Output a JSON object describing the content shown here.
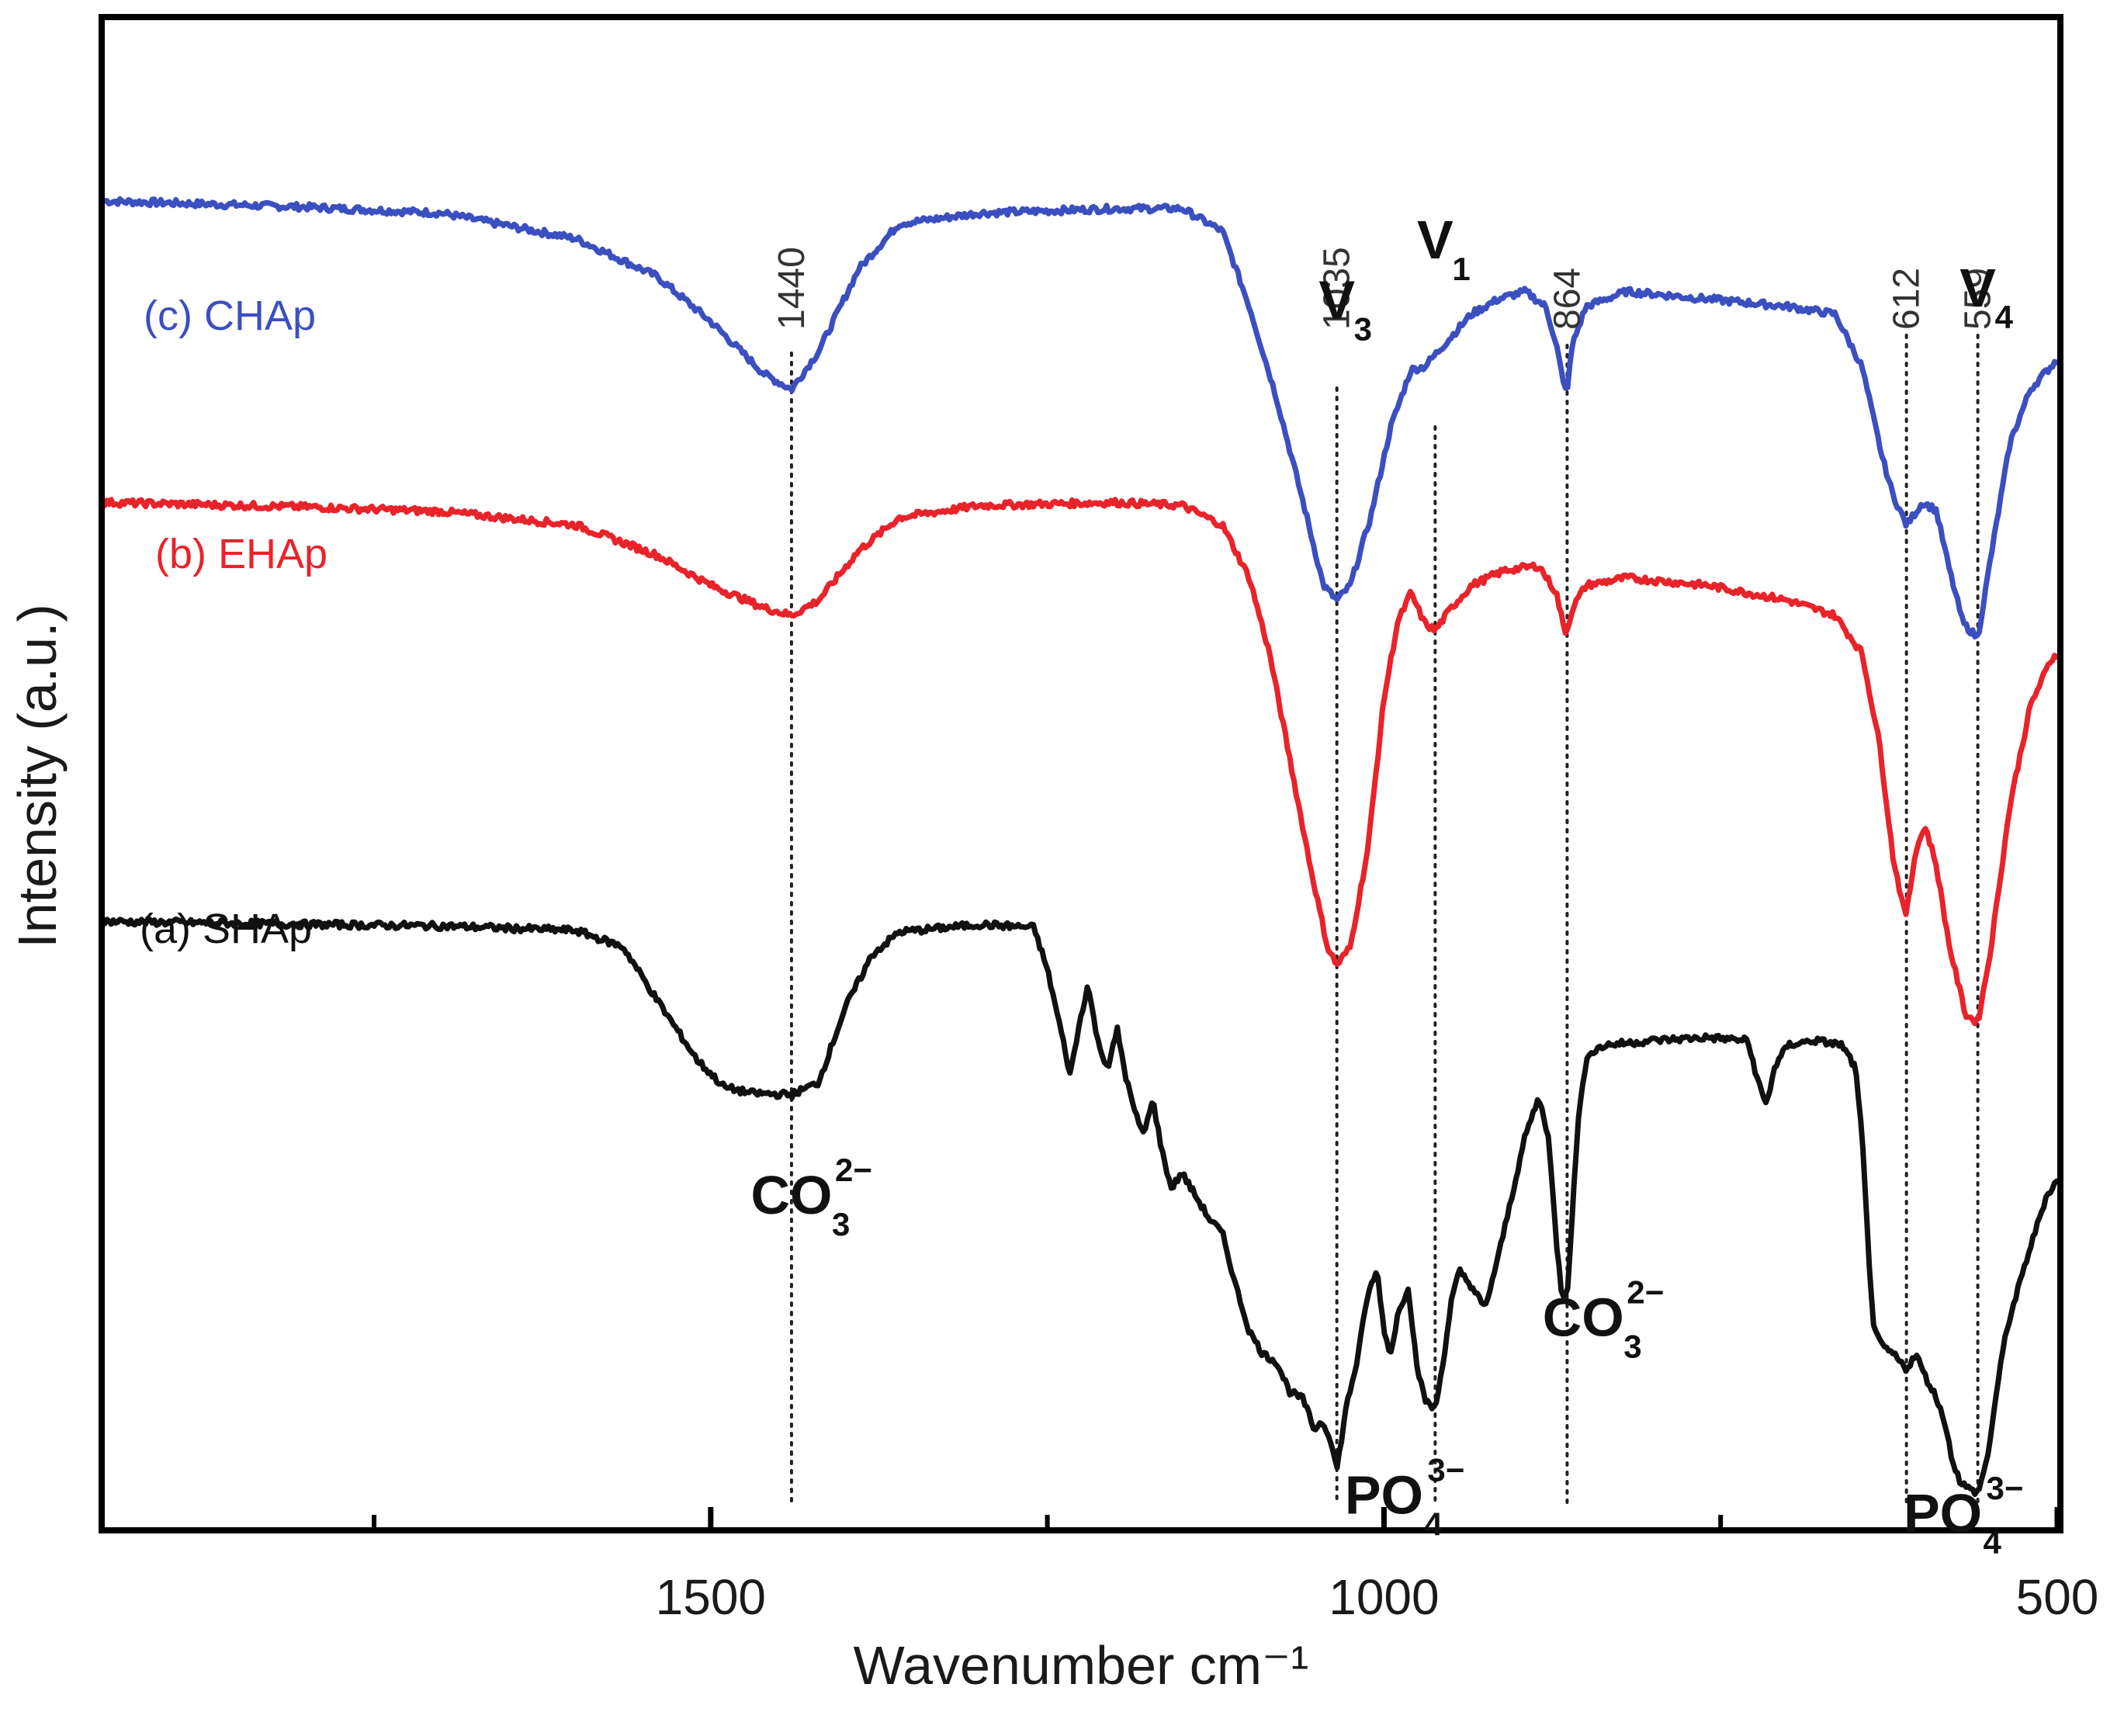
{
  "chart_data": {
    "type": "line",
    "title": "",
    "xlabel": "Wavenumber cm⁻¹",
    "ylabel": "Intensity (a.u.)",
    "xlim": [
      1950,
      500
    ],
    "ylim": [
      0,
      100
    ],
    "x_reversed": true,
    "x_ticks": [
      1500,
      1000,
      500
    ],
    "x_minor_ticks": [
      1750,
      1250,
      750
    ],
    "grid": false,
    "legend": "inline labels at top-left of each trace",
    "reference_lines": [
      {
        "x": 1440,
        "label": "1440"
      },
      {
        "x": 1035,
        "label": "1035"
      },
      {
        "x": 962,
        "label": ""
      },
      {
        "x": 864,
        "label": "864"
      },
      {
        "x": 612,
        "label": "612"
      },
      {
        "x": 559,
        "label": "559"
      }
    ],
    "series": [
      {
        "name": "(c) CHAp",
        "color": "#3b4fc0",
        "points": [
          [
            1950,
            88.0
          ],
          [
            1800,
            87.6
          ],
          [
            1700,
            87.2
          ],
          [
            1600,
            85.5
          ],
          [
            1540,
            83.0
          ],
          [
            1500,
            80.0
          ],
          [
            1460,
            76.5
          ],
          [
            1440,
            75.5
          ],
          [
            1420,
            78.0
          ],
          [
            1390,
            83.5
          ],
          [
            1360,
            86.5
          ],
          [
            1300,
            87.2
          ],
          [
            1200,
            87.5
          ],
          [
            1150,
            87.5
          ],
          [
            1120,
            86.0
          ],
          [
            1100,
            81.0
          ],
          [
            1080,
            75.0
          ],
          [
            1060,
            68.0
          ],
          [
            1045,
            62.5
          ],
          [
            1035,
            61.5
          ],
          [
            1025,
            62.5
          ],
          [
            1010,
            67.0
          ],
          [
            995,
            73.0
          ],
          [
            980,
            76.8
          ],
          [
            970,
            77.0
          ],
          [
            962,
            77.8
          ],
          [
            950,
            79.0
          ],
          [
            935,
            80.5
          ],
          [
            915,
            81.5
          ],
          [
            895,
            82.0
          ],
          [
            880,
            81.0
          ],
          [
            872,
            78.5
          ],
          [
            866,
            75.5
          ],
          [
            864,
            75.5
          ],
          [
            860,
            78.5
          ],
          [
            850,
            81.0
          ],
          [
            820,
            82.0
          ],
          [
            760,
            81.5
          ],
          [
            700,
            81.0
          ],
          [
            665,
            80.5
          ],
          [
            645,
            77.0
          ],
          [
            630,
            71.0
          ],
          [
            622,
            68.5
          ],
          [
            612,
            66.5
          ],
          [
            600,
            68.0
          ],
          [
            590,
            67.5
          ],
          [
            580,
            63.5
          ],
          [
            570,
            60.0
          ],
          [
            559,
            59.0
          ],
          [
            550,
            64.0
          ],
          [
            535,
            72.0
          ],
          [
            520,
            75.5
          ],
          [
            505,
            77.0
          ],
          [
            500,
            77.5
          ]
        ]
      },
      {
        "name": "(b) EHAp",
        "color": "#e8232a",
        "points": [
          [
            1950,
            68.0
          ],
          [
            1800,
            67.7
          ],
          [
            1700,
            67.4
          ],
          [
            1600,
            66.5
          ],
          [
            1540,
            64.5
          ],
          [
            1500,
            62.5
          ],
          [
            1460,
            61.0
          ],
          [
            1440,
            60.5
          ],
          [
            1420,
            61.5
          ],
          [
            1390,
            64.8
          ],
          [
            1360,
            67.0
          ],
          [
            1300,
            67.8
          ],
          [
            1200,
            68.0
          ],
          [
            1150,
            67.8
          ],
          [
            1120,
            66.5
          ],
          [
            1100,
            63.0
          ],
          [
            1085,
            58.0
          ],
          [
            1070,
            51.0
          ],
          [
            1055,
            44.0
          ],
          [
            1042,
            38.5
          ],
          [
            1035,
            37.3
          ],
          [
            1025,
            38.5
          ],
          [
            1012,
            45.0
          ],
          [
            1000,
            55.0
          ],
          [
            990,
            60.0
          ],
          [
            980,
            62.0
          ],
          [
            970,
            60.0
          ],
          [
            962,
            59.5
          ],
          [
            950,
            61.0
          ],
          [
            935,
            62.5
          ],
          [
            910,
            63.5
          ],
          [
            885,
            63.8
          ],
          [
            872,
            62.0
          ],
          [
            866,
            59.5
          ],
          [
            864,
            59.5
          ],
          [
            860,
            61.0
          ],
          [
            850,
            62.5
          ],
          [
            820,
            63.0
          ],
          [
            760,
            62.5
          ],
          [
            700,
            61.5
          ],
          [
            665,
            60.5
          ],
          [
            645,
            58.0
          ],
          [
            632,
            52.0
          ],
          [
            622,
            44.5
          ],
          [
            614,
            41.0
          ],
          [
            612,
            40.7
          ],
          [
            605,
            45.0
          ],
          [
            598,
            46.5
          ],
          [
            590,
            44.0
          ],
          [
            580,
            38.5
          ],
          [
            568,
            34.0
          ],
          [
            559,
            33.5
          ],
          [
            550,
            38.0
          ],
          [
            535,
            48.0
          ],
          [
            520,
            54.5
          ],
          [
            505,
            57.5
          ],
          [
            500,
            58.0
          ]
        ]
      },
      {
        "name": "(a) SHAp",
        "color": "#111111",
        "points": [
          [
            1950,
            40.2
          ],
          [
            1800,
            40.0
          ],
          [
            1700,
            39.9
          ],
          [
            1600,
            39.6
          ],
          [
            1565,
            38.5
          ],
          [
            1540,
            35.0
          ],
          [
            1510,
            31.0
          ],
          [
            1490,
            29.2
          ],
          [
            1470,
            28.8
          ],
          [
            1440,
            28.7
          ],
          [
            1420,
            29.5
          ],
          [
            1400,
            34.5
          ],
          [
            1380,
            38.0
          ],
          [
            1360,
            39.5
          ],
          [
            1300,
            40.0
          ],
          [
            1260,
            39.8
          ],
          [
            1250,
            37.0
          ],
          [
            1240,
            33.0
          ],
          [
            1233,
            30.0
          ],
          [
            1226,
            33.5
          ],
          [
            1220,
            36.0
          ],
          [
            1212,
            32.0
          ],
          [
            1205,
            30.5
          ],
          [
            1198,
            33.0
          ],
          [
            1192,
            30.0
          ],
          [
            1185,
            27.5
          ],
          [
            1178,
            26.0
          ],
          [
            1172,
            28.5
          ],
          [
            1165,
            25.0
          ],
          [
            1158,
            22.5
          ],
          [
            1150,
            23.5
          ],
          [
            1140,
            22.0
          ],
          [
            1130,
            20.5
          ],
          [
            1120,
            19.5
          ],
          [
            1110,
            16.0
          ],
          [
            1100,
            13.0
          ],
          [
            1090,
            11.5
          ],
          [
            1080,
            11.0
          ],
          [
            1070,
            9.0
          ],
          [
            1060,
            8.5
          ],
          [
            1052,
            6.5
          ],
          [
            1046,
            7.0
          ],
          [
            1040,
            6.0
          ],
          [
            1035,
            3.8
          ],
          [
            1028,
            8.0
          ],
          [
            1020,
            11.0
          ],
          [
            1012,
            15.5
          ],
          [
            1005,
            17.0
          ],
          [
            1000,
            13.0
          ],
          [
            995,
            11.5
          ],
          [
            990,
            14.0
          ],
          [
            982,
            16.0
          ],
          [
            976,
            11.0
          ],
          [
            970,
            8.5
          ],
          [
            962,
            7.8
          ],
          [
            956,
            11.0
          ],
          [
            950,
            15.0
          ],
          [
            944,
            17.0
          ],
          [
            935,
            16.0
          ],
          [
            925,
            14.5
          ],
          [
            915,
            18.0
          ],
          [
            905,
            22.0
          ],
          [
            895,
            26.0
          ],
          [
            885,
            28.5
          ],
          [
            878,
            26.0
          ],
          [
            872,
            19.0
          ],
          [
            868,
            15.5
          ],
          [
            864,
            15.5
          ],
          [
            860,
            21.0
          ],
          [
            855,
            28.0
          ],
          [
            848,
            31.5
          ],
          [
            835,
            32.0
          ],
          [
            800,
            32.3
          ],
          [
            760,
            32.5
          ],
          [
            730,
            32.3
          ],
          [
            722,
            29.5
          ],
          [
            716,
            28.0
          ],
          [
            710,
            30.5
          ],
          [
            700,
            32.0
          ],
          [
            680,
            32.3
          ],
          [
            660,
            32.0
          ],
          [
            650,
            30.5
          ],
          [
            645,
            26.0
          ],
          [
            640,
            18.0
          ],
          [
            636,
            13.0
          ],
          [
            630,
            12.0
          ],
          [
            622,
            11.5
          ],
          [
            612,
            10.5
          ],
          [
            605,
            11.5
          ],
          [
            598,
            10.0
          ],
          [
            592,
            9.0
          ],
          [
            585,
            7.5
          ],
          [
            578,
            4.5
          ],
          [
            572,
            3.0
          ],
          [
            565,
            2.5
          ],
          [
            559,
            2.3
          ],
          [
            552,
            4.5
          ],
          [
            545,
            9.0
          ],
          [
            538,
            13.0
          ],
          [
            530,
            15.5
          ],
          [
            522,
            18.0
          ],
          [
            515,
            20.0
          ],
          [
            508,
            22.0
          ],
          [
            500,
            23.0
          ]
        ]
      }
    ],
    "annotations": [
      {
        "text": "V",
        "sub": "3",
        "x": 1035,
        "y": 80.2
      },
      {
        "text": "V",
        "sub": "1",
        "x": 962,
        "y": 84.2
      },
      {
        "text": "V",
        "sub": "4",
        "x": 559,
        "y": 81.0
      },
      {
        "text": "CO",
        "sub": "3",
        "sup": "2−",
        "x": 1440,
        "y": 20.8
      },
      {
        "text": "PO",
        "sub": "4",
        "sup": "3−",
        "x": 1000,
        "y": 0.9
      },
      {
        "text": "CO",
        "sub": "3",
        "sup": "2−",
        "x": 852,
        "y": 12.7
      },
      {
        "text": "PO",
        "sub": "4",
        "sup": "3−",
        "x": 585,
        "y": -0.3
      }
    ]
  }
}
